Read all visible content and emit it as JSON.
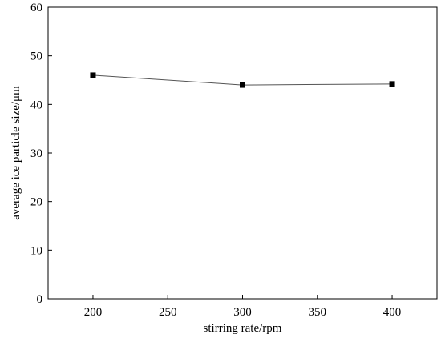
{
  "chart_data": {
    "type": "line",
    "xlabel": "stirring rate/rpm",
    "ylabel": "average ice particle size/μm",
    "xlim": [
      170,
      430
    ],
    "ylim": [
      0,
      60
    ],
    "x_ticks": [
      200,
      250,
      300,
      350,
      400
    ],
    "y_ticks": [
      0,
      10,
      20,
      30,
      40,
      50,
      60
    ],
    "grid": false,
    "legend": "none",
    "series": [
      {
        "x": [
          200,
          300,
          400
        ],
        "values": [
          46.0,
          44.0,
          44.2
        ],
        "marker": "square",
        "color": "#000000",
        "line_color": "#555555"
      }
    ]
  }
}
